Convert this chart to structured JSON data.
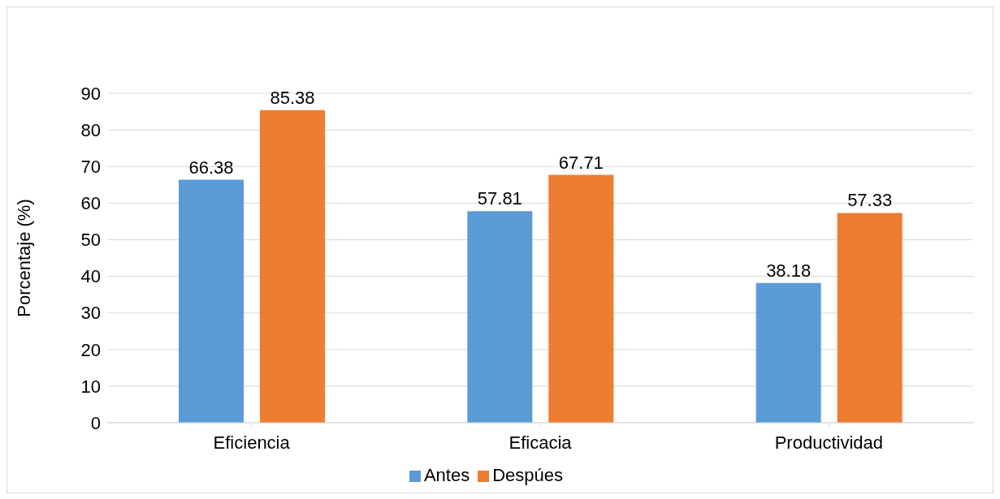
{
  "chart_data": {
    "type": "bar",
    "ylabel": "Porcentaje (%)",
    "categories": [
      "Eficiencia",
      "Eficacia",
      "Productividad"
    ],
    "series": [
      {
        "name": "Antes",
        "color": "#5b9bd5",
        "values": [
          66.38,
          57.81,
          38.18
        ]
      },
      {
        "name": "Despúes",
        "color": "#ed7d31",
        "values": [
          85.38,
          67.71,
          57.33
        ]
      }
    ],
    "ylim": [
      0,
      90
    ],
    "yticks": [
      0,
      10,
      20,
      30,
      40,
      50,
      60,
      70,
      80,
      90
    ],
    "grid": "y",
    "legend": "bottom",
    "data_labels": true
  }
}
